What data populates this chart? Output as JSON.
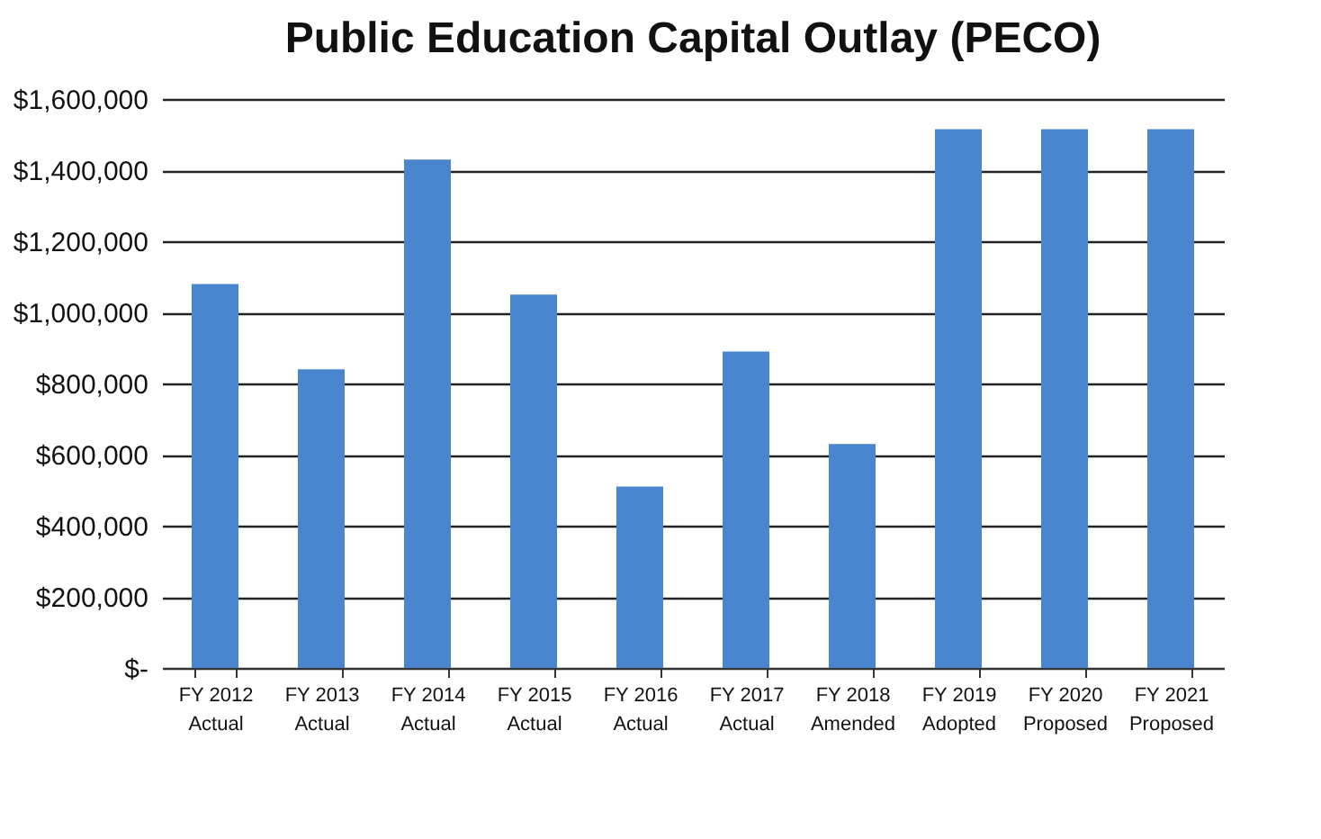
{
  "chart_data": {
    "type": "bar",
    "title": "Public Education Capital Outlay (PECO)",
    "categories": [
      "FY 2012 Actual",
      "FY 2013 Actual",
      "FY 2014 Actual",
      "FY 2015 Actual",
      "FY 2016 Actual",
      "FY 2017 Actual",
      "FY 2018 Amended",
      "FY 2019 Adopted",
      "FY 2020 Proposed",
      "FY 2021 Proposed"
    ],
    "values": [
      1080000,
      840000,
      1430000,
      1050000,
      510000,
      890000,
      630000,
      1515000,
      1515000,
      1515000
    ],
    "color": "#4a86d0",
    "ylim": [
      0,
      1600000
    ],
    "yticks": [
      {
        "value": 0,
        "label": "$-"
      },
      {
        "value": 200000,
        "label": "$200,000"
      },
      {
        "value": 400000,
        "label": "$400,000"
      },
      {
        "value": 600000,
        "label": "$600,000"
      },
      {
        "value": 800000,
        "label": "$800,000"
      },
      {
        "value": 1000000,
        "label": "$1,000,000"
      },
      {
        "value": 1200000,
        "label": "$1,200,000"
      },
      {
        "value": 1400000,
        "label": "$1,400,000"
      },
      {
        "value": 1600000,
        "label": "$1,600,000"
      }
    ],
    "grid": "y"
  }
}
